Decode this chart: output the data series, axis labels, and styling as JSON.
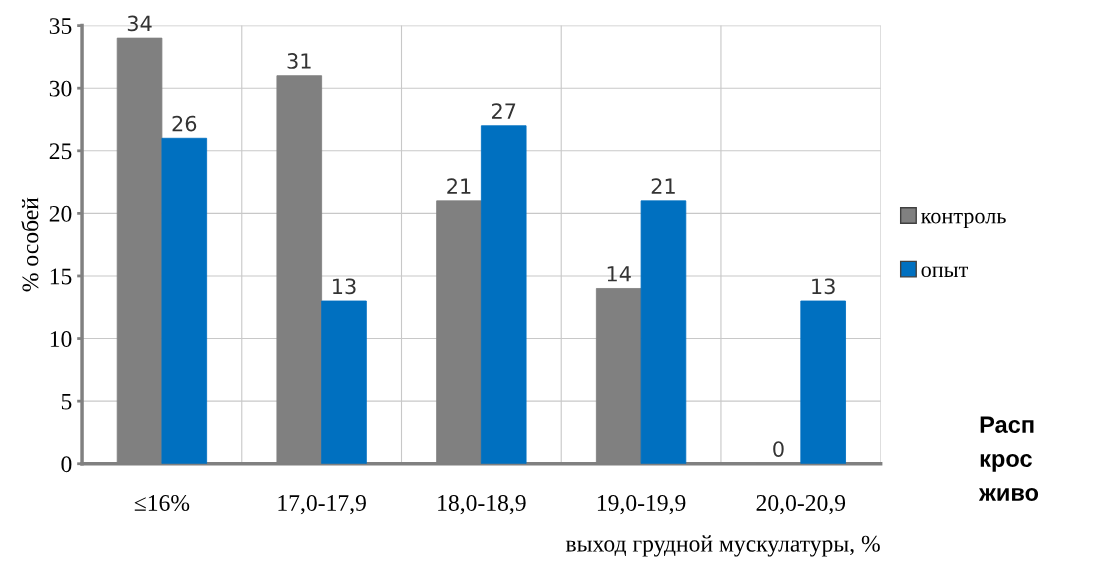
{
  "chart_data": {
    "type": "bar",
    "xlabel": "выход грудной мускулатуры, %",
    "ylabel": "% особей",
    "categories": [
      "≤16%",
      "17,0-17,9",
      "18,0-18,9",
      "19,0-19,9",
      "20,0-20,9"
    ],
    "series": [
      {
        "name": "контроль",
        "color": "#808080",
        "values": [
          34,
          31,
          21,
          14,
          0
        ]
      },
      {
        "name": "опыт",
        "color": "#0070c0",
        "values": [
          26,
          13,
          27,
          21,
          13
        ]
      }
    ],
    "ylim": [
      0,
      35
    ],
    "yticks": [
      0,
      5,
      10,
      15,
      20,
      25,
      30,
      35
    ],
    "grid": true,
    "legend": "right",
    "data_labels": true,
    "annotations": [
      "Расп\nкрос\nживо"
    ]
  }
}
